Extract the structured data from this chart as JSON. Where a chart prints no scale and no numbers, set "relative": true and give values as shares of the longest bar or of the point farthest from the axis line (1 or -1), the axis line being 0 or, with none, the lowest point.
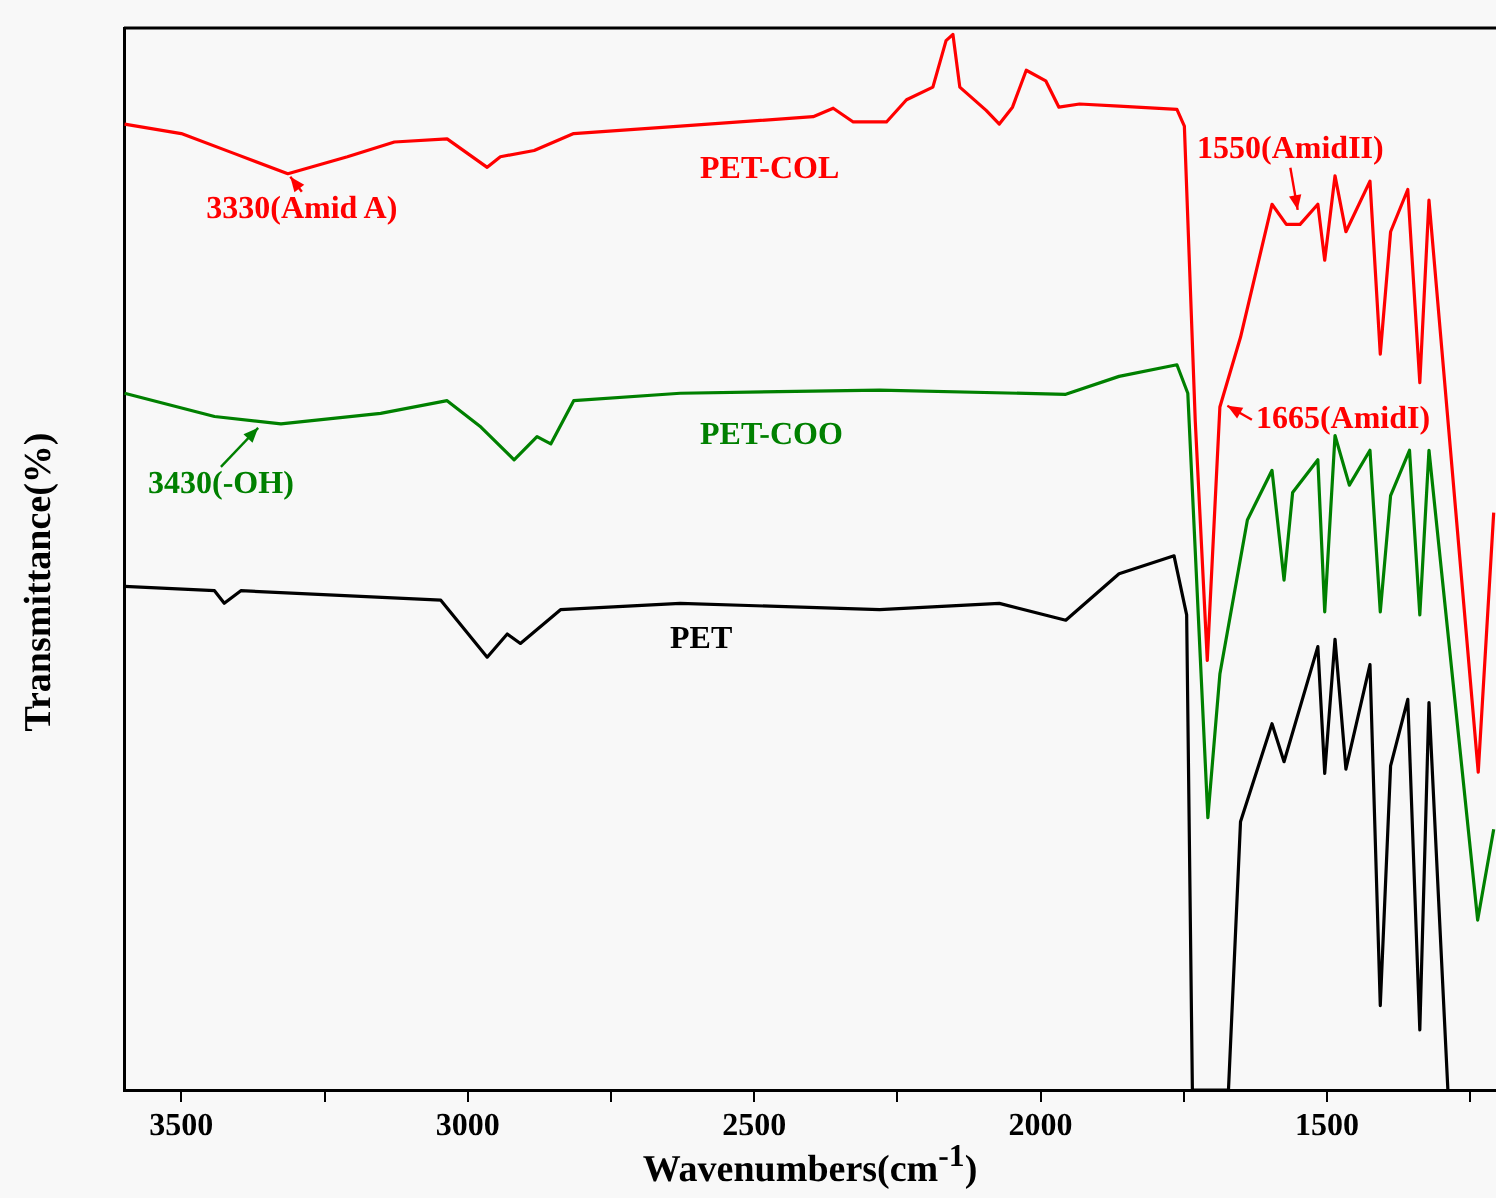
{
  "chart_data": {
    "type": "line",
    "xlabel": "Wavenumbers(cm$^{-1}$)",
    "ylabel": "Transmittance(%)",
    "relative": true,
    "legend": false,
    "grid": false,
    "marker": "none",
    "line_style": "solid",
    "xlim": [
      3600,
      1205
    ],
    "xticks": [
      3500,
      {
        "value": 3250,
        "label": null
      },
      3000,
      {
        "value": 2750,
        "label": null
      },
      2500,
      {
        "value": 2250,
        "label": null
      },
      2000,
      {
        "value": 1750,
        "label": null
      },
      1500,
      {
        "value": 1250,
        "label": null
      }
    ],
    "series": [
      {
        "name": "PET-COL",
        "color": "#ff0000",
        "x": [
          3599,
          3500,
          3407,
          3314,
          3210,
          3128,
          3036,
          2966,
          2943,
          2884,
          2815,
          2629,
          2397,
          2362,
          2327,
          2269,
          2234,
          2188,
          2165,
          2153,
          2141,
          2095,
          2072,
          2049,
          2025,
          1991,
          1968,
          1932,
          1863,
          1762,
          1749,
          1730,
          1709,
          1687,
          1651,
          1596,
          1571,
          1547,
          1516,
          1504,
          1486,
          1467,
          1425,
          1407,
          1389,
          1359,
          1338,
          1322,
          1236,
          1209
        ],
        "values": [
          0.915,
          0.906,
          0.887,
          0.868,
          0.884,
          0.898,
          0.901,
          0.874,
          0.884,
          0.89,
          0.906,
          0.913,
          0.922,
          0.93,
          0.917,
          0.917,
          0.938,
          0.95,
          0.994,
          1.0,
          0.95,
          0.928,
          0.915,
          0.931,
          0.966,
          0.956,
          0.931,
          0.934,
          0.932,
          0.929,
          0.913,
          0.634,
          0.407,
          0.647,
          0.713,
          0.839,
          0.82,
          0.82,
          0.839,
          0.786,
          0.866,
          0.813,
          0.861,
          0.697,
          0.813,
          0.853,
          0.67,
          0.843,
          0.301,
          0.547
        ]
      },
      {
        "name": "PET-COO",
        "color": "#008000",
        "x": [
          3599,
          3442,
          3326,
          3152,
          3036,
          2977,
          2919,
          2879,
          2855,
          2815,
          2629,
          2281,
          1956,
          1863,
          1762,
          1743,
          1708,
          1687,
          1639,
          1596,
          1575,
          1560,
          1516,
          1504,
          1486,
          1461,
          1425,
          1407,
          1389,
          1356,
          1338,
          1322,
          1237,
          1209
        ],
        "values": [
          0.66,
          0.638,
          0.631,
          0.641,
          0.653,
          0.628,
          0.597,
          0.619,
          0.612,
          0.653,
          0.66,
          0.663,
          0.659,
          0.676,
          0.687,
          0.66,
          0.258,
          0.394,
          0.54,
          0.587,
          0.483,
          0.566,
          0.597,
          0.453,
          0.62,
          0.573,
          0.606,
          0.453,
          0.563,
          0.606,
          0.45,
          0.606,
          0.161,
          0.247
        ]
      },
      {
        "name": "PET",
        "color": "#000000",
        "x": [
          3599,
          3442,
          3425,
          3396,
          3047,
          2966,
          2931,
          2908,
          2838,
          2629,
          2281,
          2072,
          1956,
          1863,
          1767,
          1745,
          1735,
          1672,
          1651,
          1596,
          1575,
          1516,
          1504,
          1486,
          1467,
          1425,
          1407,
          1389,
          1359,
          1338,
          1322,
          1289
        ],
        "values": [
          0.477,
          0.473,
          0.461,
          0.473,
          0.464,
          0.41,
          0.432,
          0.423,
          0.455,
          0.461,
          0.455,
          0.461,
          0.445,
          0.489,
          0.506,
          0.45,
          0,
          0,
          0.254,
          0.347,
          0.311,
          0.42,
          0.3,
          0.427,
          0.304,
          0.403,
          0.08,
          0.307,
          0.37,
          0.057,
          0.367,
          0
        ]
      }
    ],
    "annotations": [
      {
        "text": "3330(Amid A)",
        "x": 3314,
        "y": 0.868
      },
      {
        "text": "3430(-OH)",
        "x": 3361,
        "y": 0.63
      },
      {
        "text": "1550(AmidII)",
        "x": 1550,
        "y": 0.83
      },
      {
        "text": "1665(AmidI)",
        "x": 1680,
        "y": 0.65
      }
    ]
  }
}
